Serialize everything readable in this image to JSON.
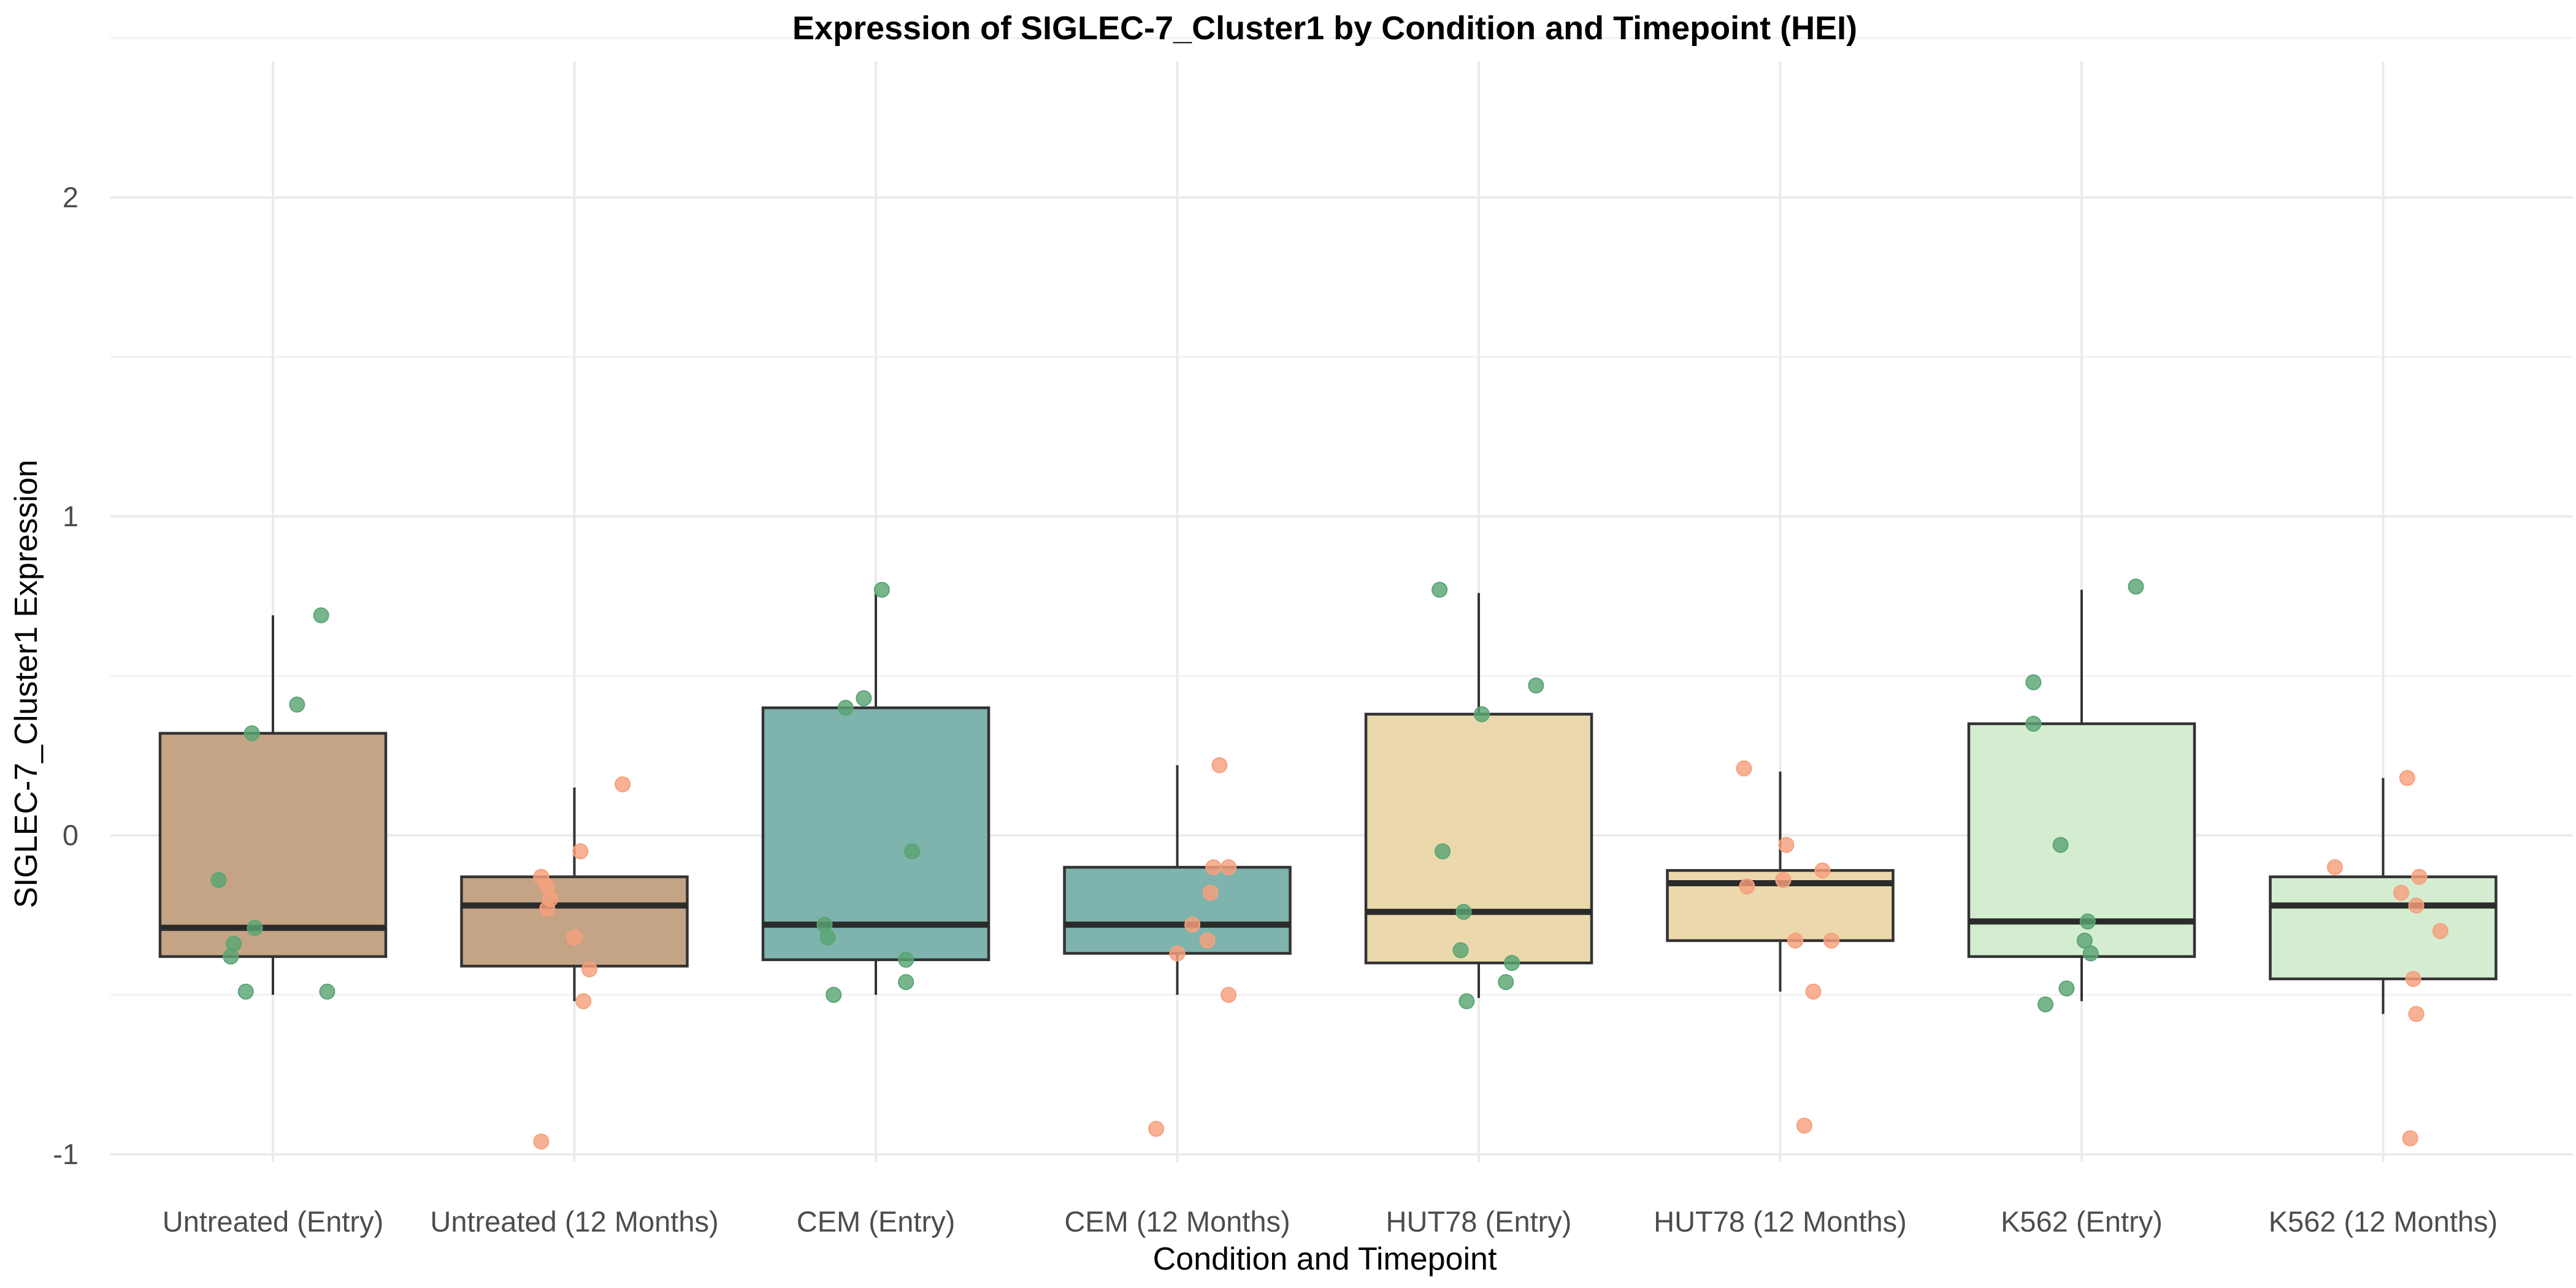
{
  "chart_data": {
    "type": "box",
    "title": "Expression of SIGLEC-7_Cluster1 by Condition and Timepoint (HEI)",
    "xlabel": "Condition and Timepoint",
    "ylabel": "SIGLEC-7_Cluster1 Expression",
    "ylim": [
      -1.1,
      2.4
    ],
    "yticks": [
      -1,
      0,
      1,
      2
    ],
    "grid": true,
    "legend": "none",
    "categories": [
      "Untreated (Entry)",
      "Untreated (12 Months)",
      "CEM (Entry)",
      "CEM (12 Months)",
      "HUT78 (Entry)",
      "HUT78 (12 Months)",
      "K562 (Entry)",
      "K562 (12 Months)"
    ],
    "box_colors": [
      "#c4a484",
      "#c4a484",
      "#7fb3ad",
      "#7fb3ad",
      "#ebd8ac",
      "#ebd8ac",
      "#d4edd1",
      "#d4edd1"
    ],
    "point_colors": {
      "Entry": "#5aa574",
      "12 Months": "#f7a07c"
    },
    "boxes": [
      {
        "category": "Untreated (Entry)",
        "whisker_low": -0.5,
        "q1": -0.38,
        "median": -0.29,
        "q3": 0.32,
        "whisker_high": 0.69
      },
      {
        "category": "Untreated (12 Months)",
        "whisker_low": -0.52,
        "q1": -0.41,
        "median": -0.22,
        "q3": -0.13,
        "whisker_high": 0.15
      },
      {
        "category": "CEM (Entry)",
        "whisker_low": -0.5,
        "q1": -0.39,
        "median": -0.28,
        "q3": 0.4,
        "whisker_high": 0.76
      },
      {
        "category": "CEM (12 Months)",
        "whisker_low": -0.5,
        "q1": -0.37,
        "median": -0.28,
        "q3": -0.1,
        "whisker_high": 0.22
      },
      {
        "category": "HUT78 (Entry)",
        "whisker_low": -0.51,
        "q1": -0.4,
        "median": -0.24,
        "q3": 0.38,
        "whisker_high": 0.76
      },
      {
        "category": "HUT78 (12 Months)",
        "whisker_low": -0.49,
        "q1": -0.33,
        "median": -0.15,
        "q3": -0.11,
        "whisker_high": 0.2
      },
      {
        "category": "K562 (Entry)",
        "whisker_low": -0.52,
        "q1": -0.38,
        "median": -0.27,
        "q3": 0.35,
        "whisker_high": 0.77
      },
      {
        "category": "K562 (12 Months)",
        "whisker_low": -0.56,
        "q1": -0.45,
        "median": -0.22,
        "q3": -0.13,
        "whisker_high": 0.18
      }
    ],
    "points": [
      {
        "category": "Untreated (Entry)",
        "timepoint": "Entry",
        "jitter": 0.16,
        "values": [
          0.69
        ]
      },
      {
        "category": "Untreated (Entry)",
        "timepoint": "Entry",
        "jitter": 0.08,
        "values": [
          0.41
        ]
      },
      {
        "category": "Untreated (Entry)",
        "timepoint": "Entry",
        "jitter": -0.07,
        "values": [
          0.32
        ]
      },
      {
        "category": "Untreated (Entry)",
        "timepoint": "Entry",
        "jitter": -0.18,
        "values": [
          -0.14
        ]
      },
      {
        "category": "Untreated (Entry)",
        "timepoint": "Entry",
        "jitter": -0.06,
        "values": [
          -0.29
        ]
      },
      {
        "category": "Untreated (Entry)",
        "timepoint": "Entry",
        "jitter": -0.13,
        "values": [
          -0.34
        ]
      },
      {
        "category": "Untreated (Entry)",
        "timepoint": "Entry",
        "jitter": -0.14,
        "values": [
          -0.38
        ]
      },
      {
        "category": "Untreated (Entry)",
        "timepoint": "Entry",
        "jitter": -0.09,
        "values": [
          -0.49
        ]
      },
      {
        "category": "Untreated (Entry)",
        "timepoint": "Entry",
        "jitter": 0.18,
        "values": [
          -0.49
        ]
      },
      {
        "category": "Untreated (12 Months)",
        "timepoint": "12 Months",
        "jitter": 0.16,
        "values": [
          0.16
        ]
      },
      {
        "category": "Untreated (12 Months)",
        "timepoint": "12 Months",
        "jitter": 0.02,
        "values": [
          -0.05
        ]
      },
      {
        "category": "Untreated (12 Months)",
        "timepoint": "12 Months",
        "jitter": -0.11,
        "values": [
          -0.13
        ]
      },
      {
        "category": "Untreated (12 Months)",
        "timepoint": "12 Months",
        "jitter": -0.09,
        "values": [
          -0.16
        ]
      },
      {
        "category": "Untreated (12 Months)",
        "timepoint": "12 Months",
        "jitter": -0.08,
        "values": [
          -0.2
        ]
      },
      {
        "category": "Untreated (12 Months)",
        "timepoint": "12 Months",
        "jitter": -0.09,
        "values": [
          -0.23
        ]
      },
      {
        "category": "Untreated (12 Months)",
        "timepoint": "12 Months",
        "jitter": 0.0,
        "values": [
          -0.32
        ]
      },
      {
        "category": "Untreated (12 Months)",
        "timepoint": "12 Months",
        "jitter": 0.05,
        "values": [
          -0.42
        ]
      },
      {
        "category": "Untreated (12 Months)",
        "timepoint": "12 Months",
        "jitter": 0.03,
        "values": [
          -0.52
        ]
      },
      {
        "category": "Untreated (12 Months)",
        "timepoint": "12 Months",
        "jitter": -0.11,
        "values": [
          -0.96
        ]
      },
      {
        "category": "CEM (Entry)",
        "timepoint": "Entry",
        "jitter": 0.02,
        "values": [
          0.77
        ]
      },
      {
        "category": "CEM (Entry)",
        "timepoint": "Entry",
        "jitter": -0.04,
        "values": [
          0.43
        ]
      },
      {
        "category": "CEM (Entry)",
        "timepoint": "Entry",
        "jitter": -0.1,
        "values": [
          0.4
        ]
      },
      {
        "category": "CEM (Entry)",
        "timepoint": "Entry",
        "jitter": 0.12,
        "values": [
          -0.05
        ]
      },
      {
        "category": "CEM (Entry)",
        "timepoint": "Entry",
        "jitter": -0.17,
        "values": [
          -0.28
        ]
      },
      {
        "category": "CEM (Entry)",
        "timepoint": "Entry",
        "jitter": -0.16,
        "values": [
          -0.32
        ]
      },
      {
        "category": "CEM (Entry)",
        "timepoint": "Entry",
        "jitter": 0.1,
        "values": [
          -0.39
        ]
      },
      {
        "category": "CEM (Entry)",
        "timepoint": "Entry",
        "jitter": 0.1,
        "values": [
          -0.46
        ]
      },
      {
        "category": "CEM (Entry)",
        "timepoint": "Entry",
        "jitter": -0.14,
        "values": [
          -0.5
        ]
      },
      {
        "category": "CEM (12 Months)",
        "timepoint": "12 Months",
        "jitter": 0.14,
        "values": [
          0.22
        ]
      },
      {
        "category": "CEM (12 Months)",
        "timepoint": "12 Months",
        "jitter": 0.12,
        "values": [
          -0.1
        ]
      },
      {
        "category": "CEM (12 Months)",
        "timepoint": "12 Months",
        "jitter": 0.17,
        "values": [
          -0.1
        ]
      },
      {
        "category": "CEM (12 Months)",
        "timepoint": "12 Months",
        "jitter": 0.11,
        "values": [
          -0.18
        ]
      },
      {
        "category": "CEM (12 Months)",
        "timepoint": "12 Months",
        "jitter": 0.05,
        "values": [
          -0.28
        ]
      },
      {
        "category": "CEM (12 Months)",
        "timepoint": "12 Months",
        "jitter": 0.1,
        "values": [
          -0.33
        ]
      },
      {
        "category": "CEM (12 Months)",
        "timepoint": "12 Months",
        "jitter": 0.0,
        "values": [
          -0.37
        ]
      },
      {
        "category": "CEM (12 Months)",
        "timepoint": "12 Months",
        "jitter": 0.17,
        "values": [
          -0.5
        ]
      },
      {
        "category": "CEM (12 Months)",
        "timepoint": "12 Months",
        "jitter": -0.07,
        "values": [
          -0.92
        ]
      },
      {
        "category": "HUT78 (Entry)",
        "timepoint": "Entry",
        "jitter": -0.13,
        "values": [
          0.77
        ]
      },
      {
        "category": "HUT78 (Entry)",
        "timepoint": "Entry",
        "jitter": 0.19,
        "values": [
          0.47
        ]
      },
      {
        "category": "HUT78 (Entry)",
        "timepoint": "Entry",
        "jitter": 0.01,
        "values": [
          0.38
        ]
      },
      {
        "category": "HUT78 (Entry)",
        "timepoint": "Entry",
        "jitter": -0.12,
        "values": [
          -0.05
        ]
      },
      {
        "category": "HUT78 (Entry)",
        "timepoint": "Entry",
        "jitter": -0.05,
        "values": [
          -0.24
        ]
      },
      {
        "category": "HUT78 (Entry)",
        "timepoint": "Entry",
        "jitter": -0.06,
        "values": [
          -0.36
        ]
      },
      {
        "category": "HUT78 (Entry)",
        "timepoint": "Entry",
        "jitter": 0.11,
        "values": [
          -0.4
        ]
      },
      {
        "category": "HUT78 (Entry)",
        "timepoint": "Entry",
        "jitter": 0.09,
        "values": [
          -0.46
        ]
      },
      {
        "category": "HUT78 (Entry)",
        "timepoint": "Entry",
        "jitter": -0.04,
        "values": [
          -0.52
        ]
      },
      {
        "category": "HUT78 (12 Months)",
        "timepoint": "12 Months",
        "jitter": -0.12,
        "values": [
          0.21
        ]
      },
      {
        "category": "HUT78 (12 Months)",
        "timepoint": "12 Months",
        "jitter": 0.02,
        "values": [
          -0.03
        ]
      },
      {
        "category": "HUT78 (12 Months)",
        "timepoint": "12 Months",
        "jitter": 0.14,
        "values": [
          -0.11
        ]
      },
      {
        "category": "HUT78 (12 Months)",
        "timepoint": "12 Months",
        "jitter": 0.01,
        "values": [
          -0.14
        ]
      },
      {
        "category": "HUT78 (12 Months)",
        "timepoint": "12 Months",
        "jitter": -0.11,
        "values": [
          -0.16
        ]
      },
      {
        "category": "HUT78 (12 Months)",
        "timepoint": "12 Months",
        "jitter": 0.05,
        "values": [
          -0.33
        ]
      },
      {
        "category": "HUT78 (12 Months)",
        "timepoint": "12 Months",
        "jitter": 0.17,
        "values": [
          -0.33
        ]
      },
      {
        "category": "HUT78 (12 Months)",
        "timepoint": "12 Months",
        "jitter": 0.11,
        "values": [
          -0.49
        ]
      },
      {
        "category": "HUT78 (12 Months)",
        "timepoint": "12 Months",
        "jitter": 0.08,
        "values": [
          -0.91
        ]
      },
      {
        "category": "K562 (Entry)",
        "timepoint": "Entry",
        "jitter": 0.18,
        "values": [
          0.78
        ]
      },
      {
        "category": "K562 (Entry)",
        "timepoint": "Entry",
        "jitter": -0.16,
        "values": [
          0.48
        ]
      },
      {
        "category": "K562 (Entry)",
        "timepoint": "Entry",
        "jitter": -0.16,
        "values": [
          0.35
        ]
      },
      {
        "category": "K562 (Entry)",
        "timepoint": "Entry",
        "jitter": -0.07,
        "values": [
          -0.03
        ]
      },
      {
        "category": "K562 (Entry)",
        "timepoint": "Entry",
        "jitter": 0.02,
        "values": [
          -0.27
        ]
      },
      {
        "category": "K562 (Entry)",
        "timepoint": "Entry",
        "jitter": 0.01,
        "values": [
          -0.33
        ]
      },
      {
        "category": "K562 (Entry)",
        "timepoint": "Entry",
        "jitter": 0.03,
        "values": [
          -0.37
        ]
      },
      {
        "category": "K562 (Entry)",
        "timepoint": "Entry",
        "jitter": -0.05,
        "values": [
          -0.48
        ]
      },
      {
        "category": "K562 (Entry)",
        "timepoint": "Entry",
        "jitter": -0.12,
        "values": [
          -0.53
        ]
      },
      {
        "category": "K562 (12 Months)",
        "timepoint": "12 Months",
        "jitter": 0.08,
        "values": [
          0.18
        ]
      },
      {
        "category": "K562 (12 Months)",
        "timepoint": "12 Months",
        "jitter": -0.16,
        "values": [
          -0.1
        ]
      },
      {
        "category": "K562 (12 Months)",
        "timepoint": "12 Months",
        "jitter": 0.12,
        "values": [
          -0.13
        ]
      },
      {
        "category": "K562 (12 Months)",
        "timepoint": "12 Months",
        "jitter": 0.06,
        "values": [
          -0.18
        ]
      },
      {
        "category": "K562 (12 Months)",
        "timepoint": "12 Months",
        "jitter": 0.11,
        "values": [
          -0.22
        ]
      },
      {
        "category": "K562 (12 Months)",
        "timepoint": "12 Months",
        "jitter": 0.19,
        "values": [
          -0.3
        ]
      },
      {
        "category": "K562 (12 Months)",
        "timepoint": "12 Months",
        "jitter": 0.1,
        "values": [
          -0.45
        ]
      },
      {
        "category": "K562 (12 Months)",
        "timepoint": "12 Months",
        "jitter": 0.11,
        "values": [
          -0.56
        ]
      },
      {
        "category": "K562 (12 Months)",
        "timepoint": "12 Months",
        "jitter": 0.09,
        "values": [
          -0.95
        ]
      }
    ]
  }
}
